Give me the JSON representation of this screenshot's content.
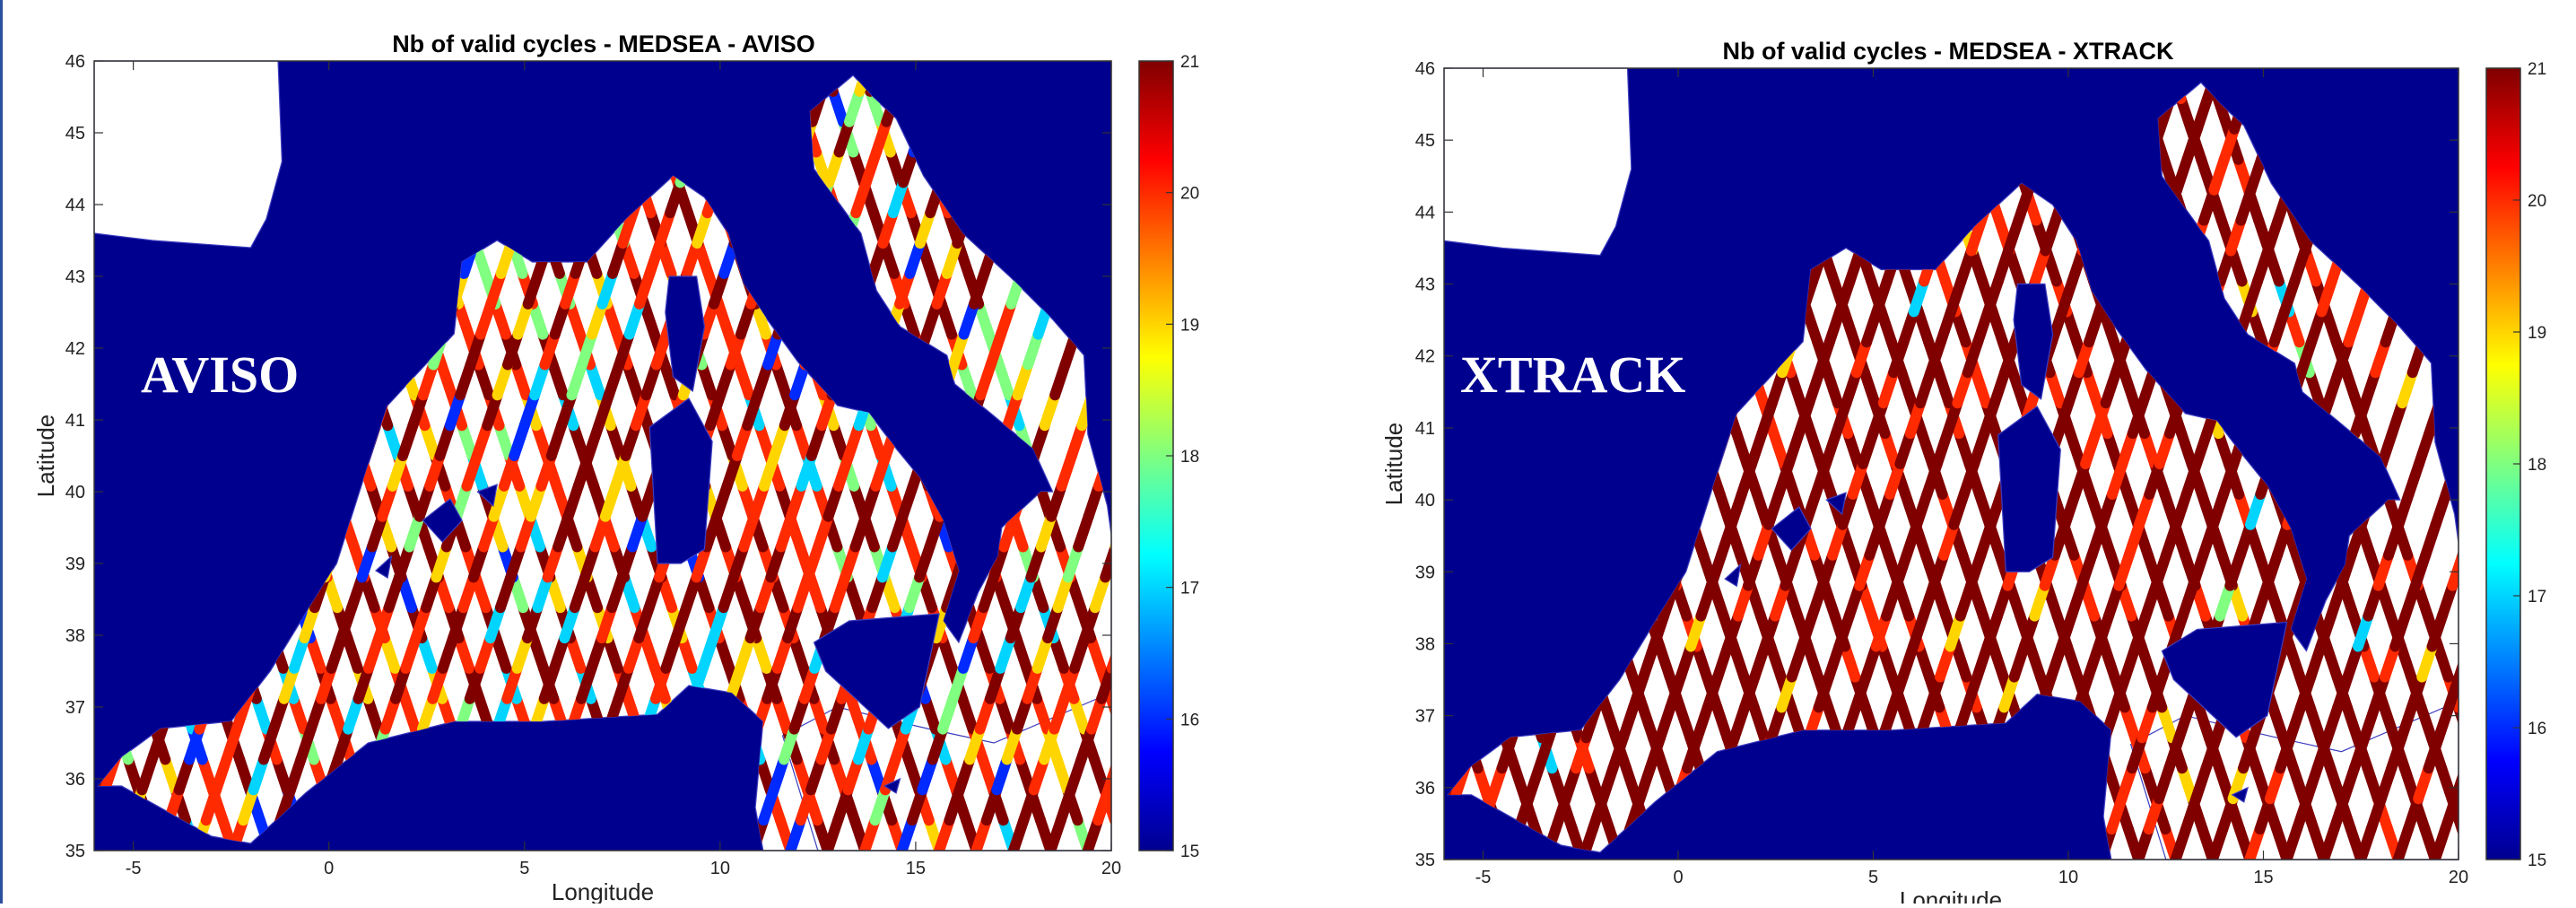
{
  "chart_data": [
    {
      "type": "heatmap",
      "title": "Nb of valid cycles - MEDSEA - AVISO",
      "overlay_label": "AVISO",
      "xlabel": "Longitude",
      "ylabel": "Latitude",
      "xlim": [
        -6,
        20
      ],
      "ylim": [
        35,
        46
      ],
      "xticks": [
        "-5",
        "0",
        "5",
        "10",
        "15",
        "20"
      ],
      "xtick_values": [
        -5,
        0,
        5,
        10,
        15,
        20
      ],
      "yticks": [
        "35",
        "36",
        "37",
        "38",
        "39",
        "40",
        "41",
        "42",
        "43",
        "44",
        "45",
        "46"
      ],
      "ytick_values": [
        35,
        36,
        37,
        38,
        39,
        40,
        41,
        42,
        43,
        44,
        45,
        46
      ],
      "colorbar": {
        "min": 15,
        "max": 21,
        "ticks": [
          "15",
          "16",
          "17",
          "18",
          "19",
          "20",
          "21"
        ],
        "tick_values": [
          15,
          16,
          17,
          18,
          19,
          20,
          21
        ],
        "colormap": "jet"
      },
      "background_value": 15,
      "track_value_weights": {
        "21": 0.42,
        "20": 0.32,
        "19": 0.1,
        "18": 0.07,
        "17": 0.05,
        "16": 0.04
      }
    },
    {
      "type": "heatmap",
      "title": "Nb of valid cycles - MEDSEA - XTRACK",
      "overlay_label": "XTRACK",
      "xlabel": "Longitude",
      "ylabel": "Latitude",
      "xlim": [
        -6,
        20
      ],
      "ylim": [
        35,
        46
      ],
      "xticks": [
        "-5",
        "0",
        "5",
        "10",
        "15",
        "20"
      ],
      "xtick_values": [
        -5,
        0,
        5,
        10,
        15,
        20
      ],
      "yticks": [
        "35",
        "36",
        "37",
        "38",
        "39",
        "40",
        "41",
        "42",
        "43",
        "44",
        "45",
        "46"
      ],
      "ytick_values": [
        35,
        36,
        37,
        38,
        39,
        40,
        41,
        42,
        43,
        44,
        45,
        46
      ],
      "colorbar": {
        "min": 15,
        "max": 21,
        "ticks": [
          "15",
          "16",
          "17",
          "18",
          "19",
          "20",
          "21"
        ],
        "tick_values": [
          15,
          16,
          17,
          18,
          19,
          20,
          21
        ],
        "colormap": "jet"
      },
      "background_value": 15,
      "track_value_weights": {
        "21": 0.8,
        "20": 0.16,
        "19": 0.025,
        "18": 0.01,
        "17": 0.005
      }
    }
  ],
  "colors": {
    "ocean": "#00008f",
    "land": "#ffffff",
    "coastline": "#3d3dbf",
    "axis": "#333333",
    "frame": "#2b4f9e"
  }
}
